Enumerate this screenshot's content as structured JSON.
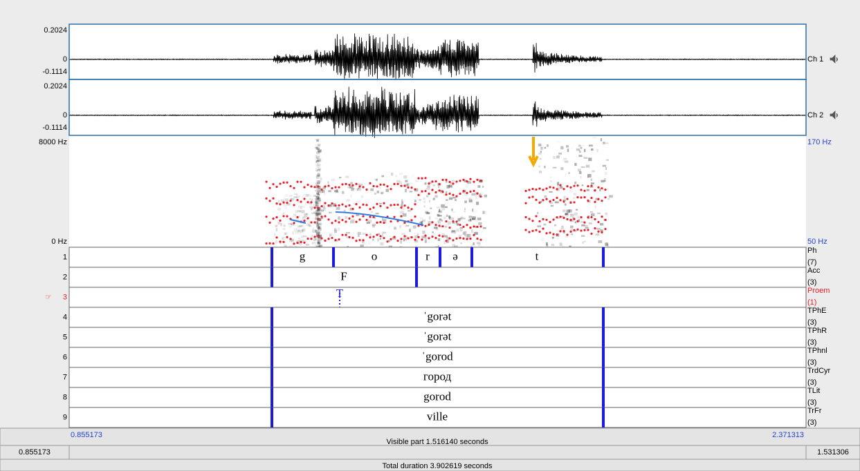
{
  "channels": [
    {
      "name": "Ch 1",
      "max": "0.2024",
      "zero": "0",
      "min": "-0.1114"
    },
    {
      "name": "Ch 2",
      "max": "0.2024",
      "zero": "0",
      "min": "-0.1114"
    }
  ],
  "spectrogram": {
    "top": "8000 Hz",
    "bottom": "0 Hz",
    "pitch_top": "170 Hz",
    "pitch_bottom": "50 Hz"
  },
  "tiers": [
    {
      "number": "1",
      "name": "Ph",
      "count": "(7)",
      "labels": [
        "g",
        "o",
        "r",
        "ə",
        "t"
      ]
    },
    {
      "number": "2",
      "name": "Acc",
      "count": "(3)",
      "labels": [
        "F"
      ]
    },
    {
      "number": "3",
      "name": "Proem",
      "count": "(1)",
      "labels": [
        "T"
      ]
    },
    {
      "number": "4",
      "name": "TPhE",
      "count": "(3)",
      "labels": [
        "ˈgorət"
      ]
    },
    {
      "number": "5",
      "name": "TPhR",
      "count": "(3)",
      "labels": [
        "ˈgorət"
      ]
    },
    {
      "number": "6",
      "name": "TPhnl",
      "count": "(3)",
      "labels": [
        "ˈgorod"
      ]
    },
    {
      "number": "7",
      "name": "TrdCyr",
      "count": "(3)",
      "labels": [
        "город"
      ]
    },
    {
      "number": "8",
      "name": "TLit",
      "count": "(3)",
      "labels": [
        "gorod"
      ]
    },
    {
      "number": "9",
      "name": "TrFr",
      "count": "(3)",
      "labels": [
        "ville"
      ]
    }
  ],
  "time": {
    "window_start": "0.855173",
    "visible": "Visible part 1.516140 seconds",
    "window_end": "2.371313",
    "left": "0.855173",
    "right": "1.531306",
    "total": "Total duration 3.902619 seconds"
  }
}
